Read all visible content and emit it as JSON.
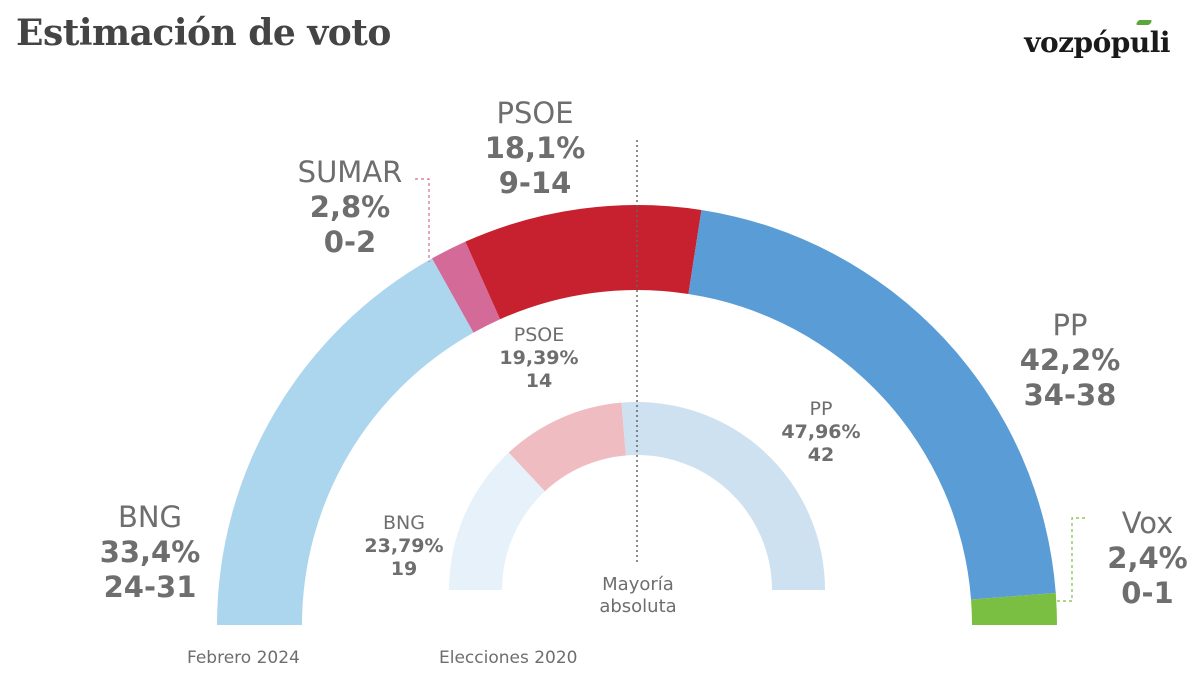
{
  "header": {
    "title": "Estimación de voto",
    "logo": "vozpópuli",
    "logo_accent_color": "#5aa63a"
  },
  "chart_data": [
    {
      "type": "pie",
      "variant": "half-donut",
      "title": "Febrero 2024",
      "categories": [
        "BNG",
        "SUMAR",
        "PSOE",
        "PP",
        "Vox"
      ],
      "values": [
        33.4,
        2.8,
        18.1,
        42.2,
        2.4
      ],
      "value_labels": [
        "33,4%",
        "2,8%",
        "18,1%",
        "42,2%",
        "2,4%"
      ],
      "seat_ranges": [
        "24-31",
        "0-2",
        "9-14",
        "34-38",
        "0-1"
      ],
      "colors": [
        "#acd5ee",
        "#d46a98",
        "#c7202e",
        "#5a9cd6",
        "#7bbf42"
      ]
    },
    {
      "type": "pie",
      "variant": "half-donut",
      "title": "Elecciones 2020",
      "categories": [
        "BNG",
        "PSOE",
        "PP"
      ],
      "values": [
        23.79,
        19.39,
        47.96
      ],
      "value_labels": [
        "23,79%",
        "19,39%",
        "47,96%"
      ],
      "seats": [
        "19",
        "14",
        "42"
      ],
      "colors": [
        "#e6f1f9",
        "#efbcc2",
        "#cde1f1"
      ]
    }
  ],
  "annotations": {
    "majority": "Mayoría absoluta",
    "majority_line1": "Mayoría",
    "majority_line2": "absoluta"
  }
}
